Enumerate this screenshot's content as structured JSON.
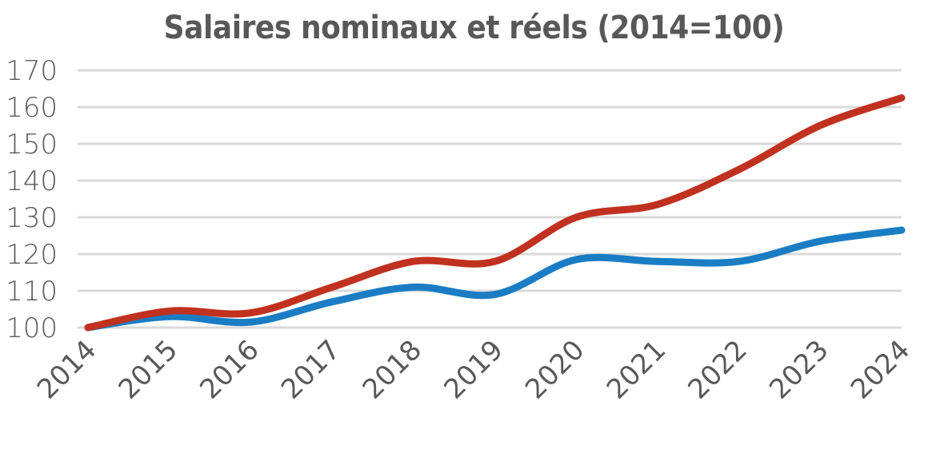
{
  "chart_data": {
    "type": "line",
    "title": "Salaires nominaux et réels (2014=100)",
    "xlabel": "",
    "ylabel": "",
    "categories": [
      "2014",
      "2015",
      "2016",
      "2017",
      "2018",
      "2019",
      "2020",
      "2021",
      "2022",
      "2023",
      "2024"
    ],
    "ylim": [
      100,
      170
    ],
    "yticks": [
      "100",
      "110",
      "120",
      "130",
      "140",
      "150",
      "160",
      "170"
    ],
    "grid": true,
    "legend": "none",
    "series": [
      {
        "color": "#C0311F",
        "values": [
          100,
          104.5,
          104,
          111,
          118,
          118,
          130,
          133.5,
          143,
          155,
          162.5
        ]
      },
      {
        "color": "#1A7DC4",
        "values": [
          100,
          103,
          101.5,
          107,
          111,
          109,
          118.5,
          118,
          118,
          123.5,
          126.5
        ]
      }
    ]
  }
}
